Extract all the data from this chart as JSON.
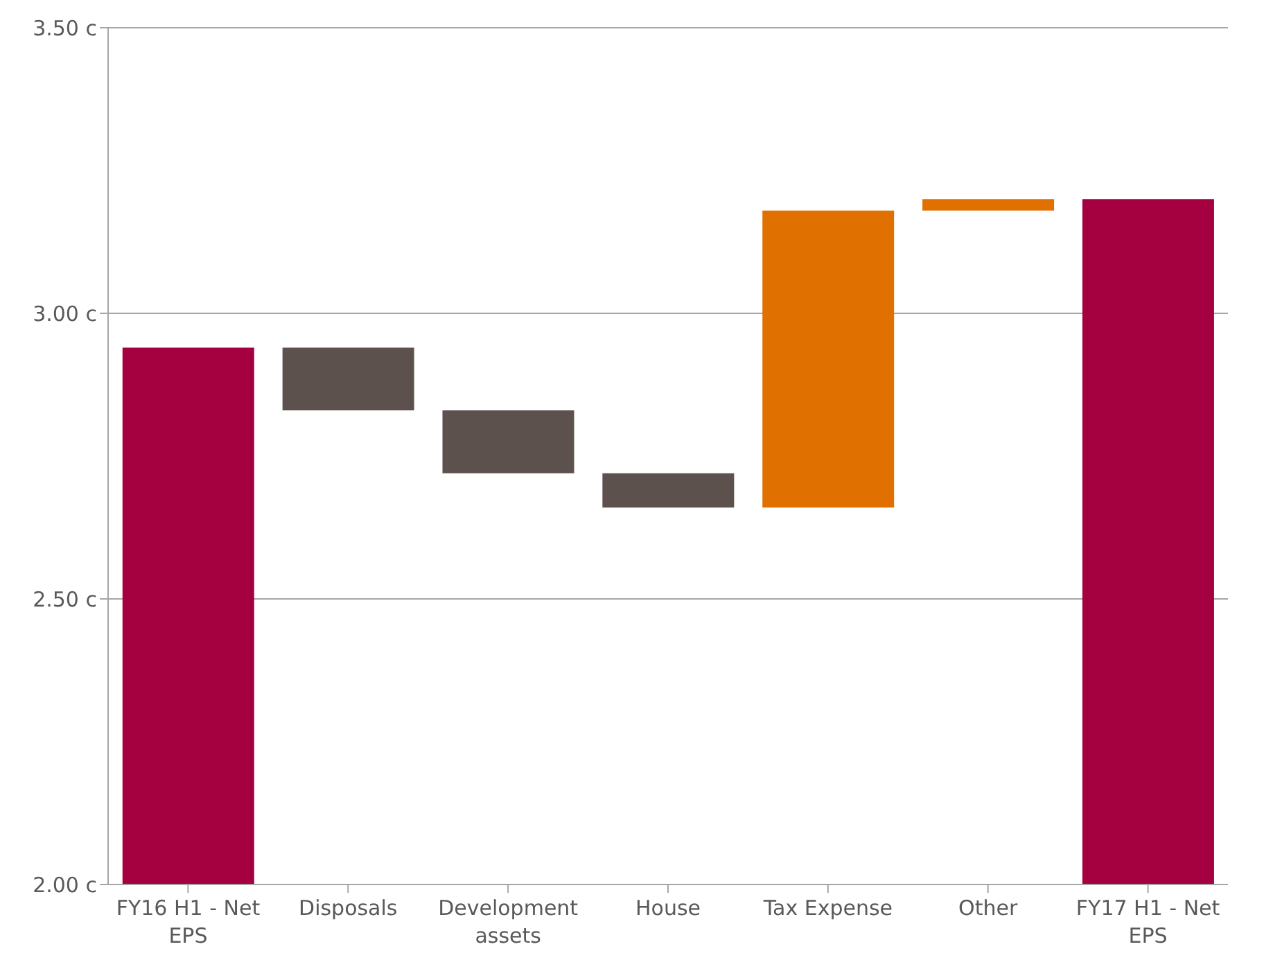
{
  "chart_data": {
    "type": "bar",
    "categories": [
      "FY16 H1 - Net EPS",
      "Disposals",
      "Development assets",
      "House",
      "Tax Expense",
      "Other",
      "FY17 H1 - Net EPS"
    ],
    "values": [
      2.94,
      -0.11,
      -0.11,
      -0.06,
      0.52,
      0.02,
      3.2
    ],
    "base": [
      null,
      2.94,
      2.83,
      2.72,
      2.66,
      3.18,
      null
    ],
    "colors": [
      "#a50040",
      "#5d514e",
      "#5d514e",
      "#5d514e",
      "#e07000",
      "#e07000",
      "#a50040"
    ],
    "ylim": [
      2.0,
      3.5
    ],
    "yticks": [
      {
        "value": 2.0,
        "label": "2.00 c"
      },
      {
        "value": 2.5,
        "label": "2.50 c"
      },
      {
        "value": 3.0,
        "label": "3.00 c"
      },
      {
        "value": 3.5,
        "label": "3.50 c"
      }
    ],
    "grid": "y"
  }
}
